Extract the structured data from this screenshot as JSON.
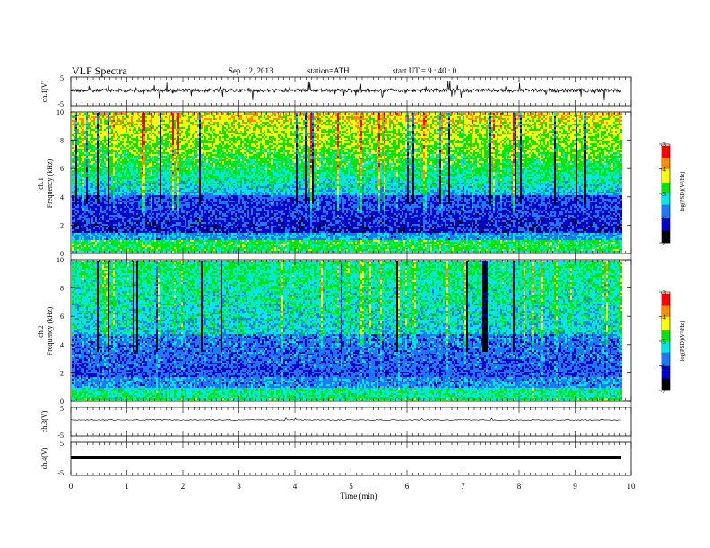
{
  "header": {
    "title": "VLF  Spectra",
    "date": "Sep. 12, 2013",
    "station": "station=ATH",
    "start": "start  UT =  9 : 40 : 0"
  },
  "chart_data": [
    {
      "type": "line",
      "panel": "waveform-ch1",
      "ylabel": "ch.1(V)",
      "ylim": [
        -5,
        5
      ],
      "yticks": [
        "5",
        "-5"
      ],
      "xlim": [
        0,
        10
      ],
      "series": [
        {
          "description_free": true,
          "values_mean": 0,
          "amplitude_range": [
            -2,
            2
          ]
        }
      ]
    },
    {
      "type": "heatmap",
      "panel": "spectrogram-ch1",
      "ylabel": "ch.1\nFrequency  (kHz)",
      "ylabel_line1": "ch.1",
      "ylabel_line2": "Frequency  (kHz)",
      "ylim": [
        0,
        10
      ],
      "yticks": [
        "0",
        "2",
        "4",
        "6",
        "8",
        "10"
      ],
      "xlim": [
        0,
        9.8
      ],
      "colorbar": {
        "label": "log(PSD)(V²/Hz)",
        "range": [
          -7,
          -3
        ],
        "ticks": [
          "-3",
          "-4",
          "-5",
          "-6",
          "-7"
        ]
      }
    },
    {
      "type": "heatmap",
      "panel": "spectrogram-ch2",
      "ylabel_line1": "ch.2",
      "ylabel_line2": "Frequency  (kHz)",
      "ylim": [
        0,
        10
      ],
      "yticks": [
        "0",
        "2",
        "4",
        "6",
        "8",
        "10"
      ],
      "xlim": [
        0,
        9.8
      ],
      "colorbar": {
        "label": "log(PSD)(V²/Hz)",
        "range": [
          -7,
          -3
        ],
        "ticks": [
          "-3",
          "-4",
          "-5",
          "-6",
          "-7"
        ]
      }
    },
    {
      "type": "line",
      "panel": "waveform-ch3",
      "ylabel": "ch.3(V)",
      "ylim": [
        -5,
        5
      ],
      "yticks": [
        "5",
        "-5"
      ]
    },
    {
      "type": "line",
      "panel": "waveform-ch4",
      "ylabel": "ch.4(V)",
      "ylim": [
        -5,
        5
      ],
      "yticks": [
        "5",
        "-5"
      ]
    }
  ],
  "xaxis": {
    "label": "Time  (min)",
    "range": [
      0,
      10
    ],
    "ticks": [
      "0",
      "1",
      "2",
      "3",
      "4",
      "5",
      "6",
      "7",
      "8",
      "9",
      "10"
    ]
  },
  "colors": {
    "palette": [
      "#000000",
      "#0000cc",
      "#1e78ff",
      "#00e6e6",
      "#00e600",
      "#ffff00",
      "#ff8c00",
      "#ff0000",
      "#ffffff"
    ]
  }
}
